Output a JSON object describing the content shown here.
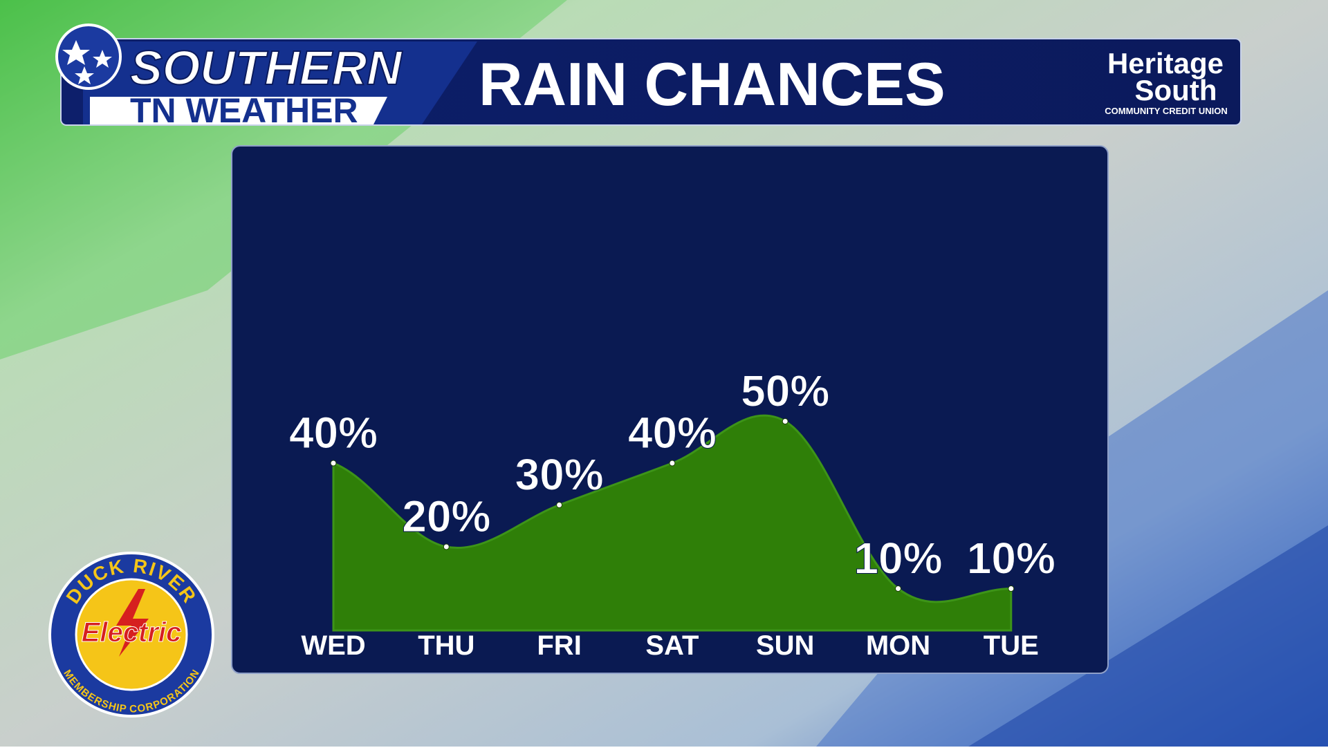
{
  "header": {
    "brand_top": "SOUTHERN",
    "brand_bottom": "TN WEATHER",
    "title": "RAIN CHANCES"
  },
  "sponsor_top": {
    "line1": "Heritage",
    "line2": "South",
    "line3": "COMMUNITY CREDIT UNION"
  },
  "sponsor_bottom": {
    "arc_top": "DUCK RIVER",
    "center": "Electric",
    "arc_bottom": "MEMBERSHIP CORPORATION"
  },
  "chart_data": {
    "type": "area",
    "categories": [
      "WED",
      "THU",
      "FRI",
      "SAT",
      "SUN",
      "MON",
      "TUE"
    ],
    "values": [
      40,
      20,
      30,
      40,
      50,
      10,
      10
    ],
    "value_labels": [
      "40%",
      "20%",
      "30%",
      "40%",
      "50%",
      "10%",
      "10%"
    ],
    "color": "#2f7f08"
  }
}
